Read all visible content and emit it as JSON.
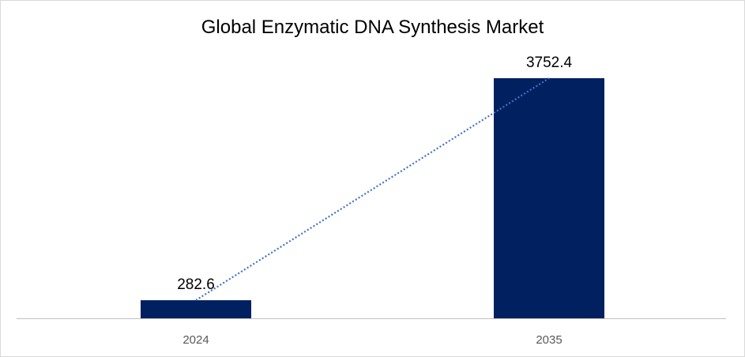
{
  "chart_data": {
    "type": "bar",
    "title": "Global Enzymatic DNA Synthesis Market",
    "xlabel": "",
    "ylabel": "",
    "categories": [
      "2024",
      "2035"
    ],
    "values": [
      282.6,
      3752.4
    ],
    "data_labels": [
      "282.6",
      "3752.4"
    ],
    "ylim": [
      0,
      4000
    ],
    "grid": false,
    "legend": "none",
    "trendline": {
      "type": "linear",
      "style": "dotted",
      "color": "#4472C4"
    },
    "bar_color": "#002060",
    "axis_color": "#bfbfbf"
  }
}
